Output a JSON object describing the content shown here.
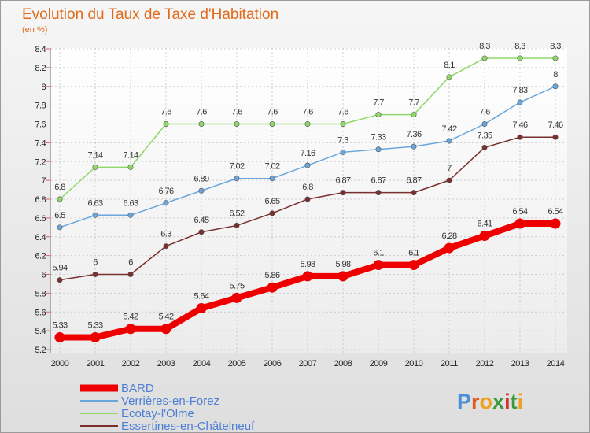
{
  "chart_data": {
    "type": "line",
    "title": "Evolution du Taux de Taxe d'Habitation",
    "subtitle": "(en %)",
    "x": [
      "2000",
      "2001",
      "2002",
      "2003",
      "2004",
      "2005",
      "2006",
      "2007",
      "2008",
      "2009",
      "2010",
      "2011",
      "2012",
      "2013",
      "2014"
    ],
    "ylim": [
      5.2,
      8.4
    ],
    "yticks": [
      "5.2",
      "5.4",
      "5.6",
      "5.8",
      "6",
      "6.2",
      "6.4",
      "6.6",
      "6.8",
      "7",
      "7.2",
      "7.4",
      "7.6",
      "7.8",
      "8",
      "8.2",
      "8.4"
    ],
    "grid": true,
    "legend_position": "bottom-left",
    "series": [
      {
        "name": "Ecotay-l'Olme",
        "color": "#8fd86a",
        "values": [
          6.8,
          7.14,
          7.14,
          7.6,
          7.6,
          7.6,
          7.6,
          7.6,
          7.6,
          7.7,
          7.7,
          8.1,
          8.3,
          8.3,
          8.3
        ],
        "labels": [
          "6.8",
          "7.14",
          "7.14",
          "7.6",
          "7.6",
          "7.6",
          "7.6",
          "7.6",
          "7.6",
          "7.7",
          "7.7",
          "8.1",
          "8.3",
          "8.3",
          "8.3"
        ]
      },
      {
        "name": "Verrières-en-Forez",
        "color": "#6aa6dc",
        "values": [
          6.5,
          6.63,
          6.63,
          6.76,
          6.89,
          7.02,
          7.02,
          7.16,
          7.3,
          7.33,
          7.36,
          7.42,
          7.6,
          7.83,
          8
        ],
        "labels": [
          "6.5",
          "6.63",
          "6.63",
          "6.76",
          "6.89",
          "7.02",
          "7.02",
          "7.16",
          "7.3",
          "7.33",
          "7.36",
          "7.42",
          "7.6",
          "7.83",
          "8"
        ]
      },
      {
        "name": "Essertines-en-Châtelneuf",
        "color": "#7a2e2e",
        "values": [
          5.94,
          6,
          6,
          6.3,
          6.45,
          6.52,
          6.65,
          6.8,
          6.87,
          6.87,
          6.87,
          7,
          7.35,
          7.46,
          7.46
        ],
        "labels": [
          "5.94",
          "6",
          "6",
          "6.3",
          "6.45",
          "6.52",
          "6.65",
          "6.8",
          "6.87",
          "6.87",
          "6.87",
          "7",
          "7.35",
          "7.46",
          "7.46"
        ]
      },
      {
        "name": "BARD",
        "color": "#ee0000",
        "values": [
          5.33,
          5.33,
          5.42,
          5.42,
          5.64,
          5.75,
          5.86,
          5.98,
          5.98,
          6.1,
          6.1,
          6.28,
          6.41,
          6.54,
          6.54
        ],
        "labels": [
          "5.33",
          "5.33",
          "5.42",
          "5.42",
          "5.64",
          "5.75",
          "5.86",
          "5.98",
          "5.98",
          "6.1",
          "6.1",
          "6.28",
          "6.41",
          "6.54",
          "6.54"
        ]
      }
    ],
    "legend": [
      {
        "name": "BARD",
        "color": "#ee0000",
        "width": "thick"
      },
      {
        "name": "Verrières-en-Forez",
        "color": "#6aa6dc",
        "width": "thin"
      },
      {
        "name": "Ecotay-l'Olme",
        "color": "#8fd86a",
        "width": "thin"
      },
      {
        "name": "Essertines-en-Châtelneuf",
        "color": "#7a2e2e",
        "width": "thin"
      }
    ]
  },
  "brand": {
    "text": "Proxiti",
    "letter_colors": [
      "#4a8fd8",
      "#e05a1e",
      "#f0a020",
      "#3a9a3a",
      "#d83030",
      "#3a9a3a",
      "#f0a020"
    ]
  }
}
